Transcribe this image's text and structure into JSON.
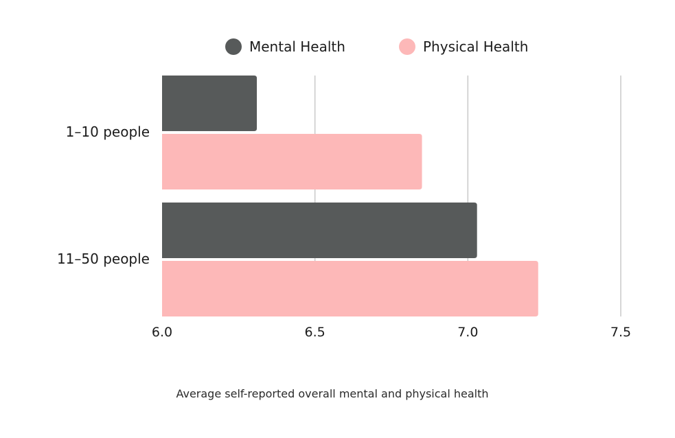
{
  "chart_data": {
    "type": "bar",
    "orientation": "horizontal",
    "title": "",
    "categories": [
      "1–10 people",
      "11–50 people"
    ],
    "series": [
      {
        "name": "Mental Health",
        "color": "#575a5a",
        "values": [
          6.31,
          7.03
        ]
      },
      {
        "name": "Physical Health",
        "color": "#fdb8b8",
        "values": [
          6.85,
          7.23
        ]
      }
    ],
    "xlim": [
      6.0,
      7.5
    ],
    "xticks": [
      "6.0",
      "6.5",
      "7.0",
      "7.5"
    ],
    "xtick_values": [
      6.0,
      6.5,
      7.0,
      7.5
    ],
    "xlabel": "Average self-reported overall mental and physical health",
    "ylabel": "",
    "grid": "vertical",
    "legend_position": "top-center",
    "gridline_color": "#c9c9c9"
  }
}
